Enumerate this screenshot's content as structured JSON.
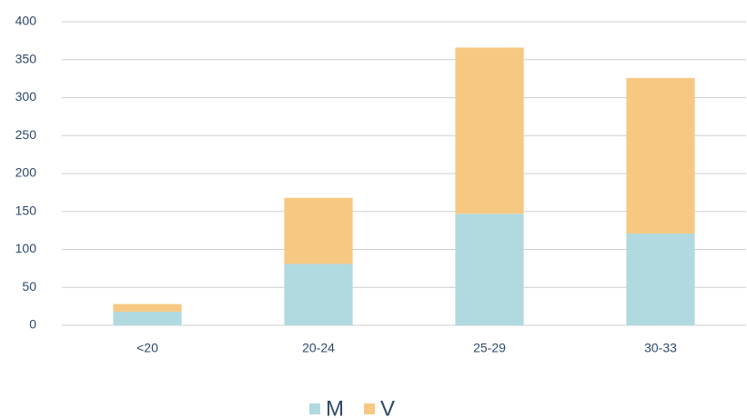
{
  "chart_data": {
    "type": "stacked_bar",
    "categories": [
      "<20",
      "20-24",
      "25-29",
      "30-33"
    ],
    "series": [
      {
        "name": "M",
        "color": "#b0d9e0",
        "values": [
          18,
          81,
          147,
          121
        ]
      },
      {
        "name": "V",
        "color": "#f7c882",
        "values": [
          10,
          87,
          219,
          205
        ]
      }
    ],
    "ylim": [
      0,
      400
    ],
    "yticks": [
      0,
      50,
      100,
      150,
      200,
      250,
      300,
      350,
      400
    ],
    "grid": true,
    "legend": "bottom"
  }
}
